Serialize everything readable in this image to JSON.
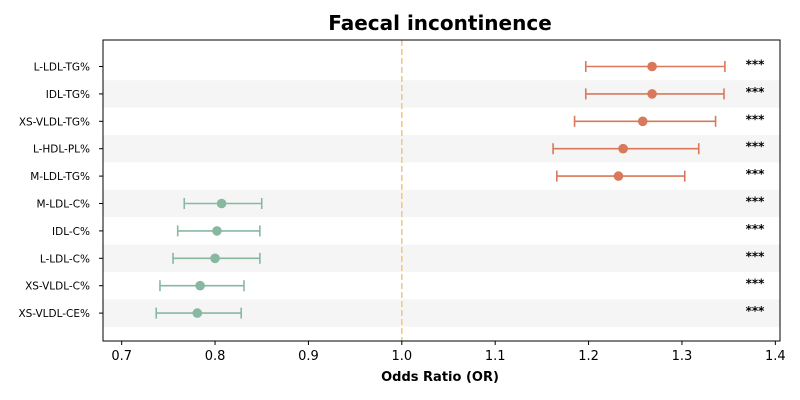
{
  "chart_data": {
    "type": "forest",
    "title": "Faecal incontinence",
    "xlabel": "Odds Ratio (OR)",
    "ylabel": "",
    "xlim": [
      0.68,
      1.405
    ],
    "xticks": [
      "0.7",
      "0.8",
      "0.9",
      "1.0",
      "1.1",
      "1.2",
      "1.3",
      "1.4"
    ],
    "reference_line": 1.0,
    "colors": {
      "positive": "#d9785a",
      "negative": "#88b8a0",
      "reference": "#efc98a",
      "stripe": "#f5f5f5"
    },
    "rows": [
      {
        "label": "L-LDL-TG%",
        "or": 1.268,
        "ci_low": 1.197,
        "ci_high": 1.346,
        "sig": "***"
      },
      {
        "label": "IDL-TG%",
        "or": 1.268,
        "ci_low": 1.197,
        "ci_high": 1.345,
        "sig": "***"
      },
      {
        "label": "XS-VLDL-TG%",
        "or": 1.258,
        "ci_low": 1.185,
        "ci_high": 1.336,
        "sig": "***"
      },
      {
        "label": "L-HDL-PL%",
        "or": 1.237,
        "ci_low": 1.162,
        "ci_high": 1.318,
        "sig": "***"
      },
      {
        "label": "M-LDL-TG%",
        "or": 1.232,
        "ci_low": 1.166,
        "ci_high": 1.303,
        "sig": "***"
      },
      {
        "label": "M-LDL-C%",
        "or": 0.807,
        "ci_low": 0.767,
        "ci_high": 0.85,
        "sig": "***"
      },
      {
        "label": "IDL-C%",
        "or": 0.802,
        "ci_low": 0.76,
        "ci_high": 0.848,
        "sig": "***"
      },
      {
        "label": "L-LDL-C%",
        "or": 0.8,
        "ci_low": 0.755,
        "ci_high": 0.848,
        "sig": "***"
      },
      {
        "label": "XS-VLDL-C%",
        "or": 0.784,
        "ci_low": 0.741,
        "ci_high": 0.831,
        "sig": "***"
      },
      {
        "label": "XS-VLDL-CE%",
        "or": 0.781,
        "ci_low": 0.737,
        "ci_high": 0.828,
        "sig": "***"
      }
    ]
  }
}
